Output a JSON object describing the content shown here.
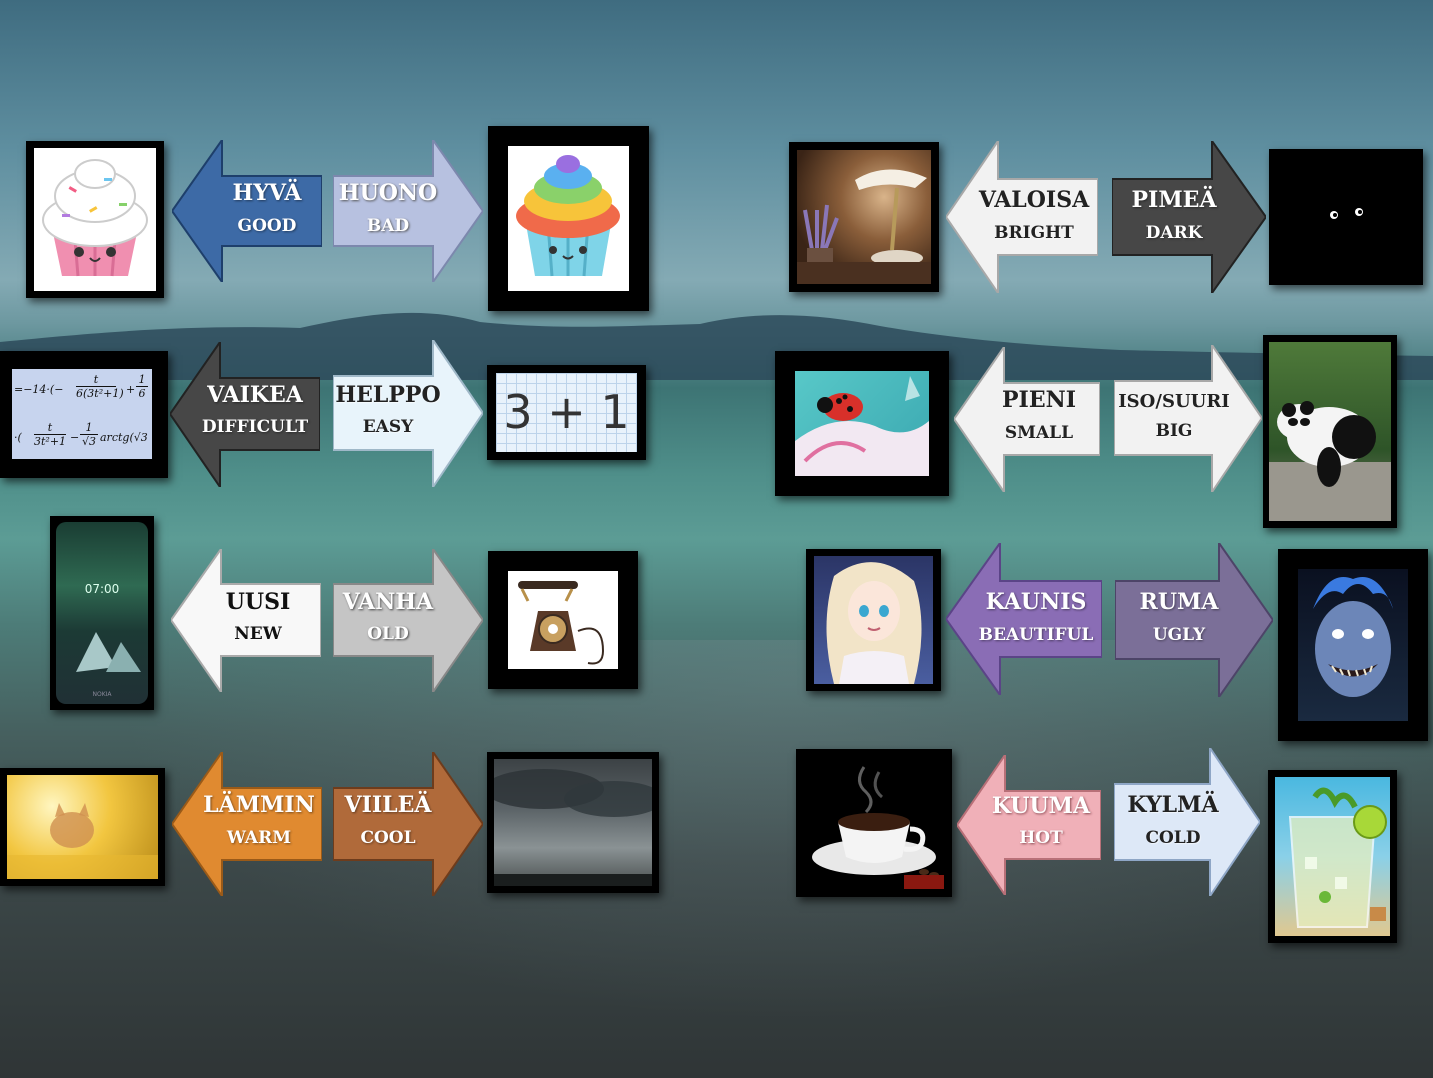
{
  "colors": {
    "blue": "#3d6aa6",
    "lavender": "#b7c1e0",
    "white": "#f2f2f2",
    "gray_dark": "#474747",
    "silver": "#c5c5c5",
    "ice": "#e8f4fb",
    "orange": "#e08a30",
    "brown": "#b06a3a",
    "purple": "#8a6db5",
    "mauve": "#7b6f98",
    "pink": "#f0b0b8",
    "pale_blue": "#dde8f7"
  },
  "pairs": [
    {
      "left_fi": "HYVÄ",
      "left_en": "GOOD",
      "right_fi": "HUONO",
      "right_en": "BAD",
      "left_img": "pink-cupcake-image",
      "right_img": "rainbow-cupcake-image"
    },
    {
      "left_fi": "VALOISA",
      "left_en": "BRIGHT",
      "right_fi": "PIMEÄ",
      "right_en": "DARK",
      "left_img": "desk-lamp-image",
      "right_img": "dark-eyes-image"
    },
    {
      "left_fi": "VAIKEA",
      "left_en": "DIFFICULT",
      "right_fi": "HELPPO",
      "right_en": "EASY",
      "left_img": "math-formula-image",
      "right_img": "simple-sum-image"
    },
    {
      "left_fi": "PIENI",
      "left_en": "SMALL",
      "right_fi": "ISO/SUURI",
      "right_en": "BIG",
      "left_img": "ladybug-image",
      "right_img": "panda-image"
    },
    {
      "left_fi": "UUSI",
      "left_en": "NEW",
      "right_fi": "VANHA",
      "right_en": "OLD",
      "left_img": "smartphone-image",
      "right_img": "old-telephone-image"
    },
    {
      "left_fi": "KAUNIS",
      "left_en": "BEAUTIFUL",
      "right_fi": "RUMA",
      "right_en": "UGLY",
      "left_img": "princess-image",
      "right_img": "monster-image"
    },
    {
      "left_fi": "LÄMMIN",
      "left_en": "WARM",
      "right_fi": "VIILEÄ",
      "right_en": "COOL",
      "left_img": "sunny-cat-image",
      "right_img": "storm-clouds-image"
    },
    {
      "left_fi": "KUUMA",
      "left_en": "HOT",
      "right_fi": "KYLMÄ",
      "right_en": "COLD",
      "left_img": "coffee-cup-image",
      "right_img": "iced-drink-image"
    }
  ],
  "images": {
    "sum_text": "3 + 1",
    "phone_time": "07:00",
    "phone_brand": "NOKIA",
    "formula_line1": "=−14·(−",
    "formula_frac1_top": "t",
    "formula_frac1_bot": "6(3t²+1)",
    "formula_plus": "+",
    "formula_frac2_top": "1",
    "formula_frac2_bot": "6",
    "formula_line2": "·(",
    "formula_frac3_top": "t",
    "formula_frac3_bot": "3t²+1",
    "formula_minus": "−",
    "formula_frac4_top": "1",
    "formula_frac4_bot": "√3",
    "formula_tail": "arctg(√3"
  }
}
